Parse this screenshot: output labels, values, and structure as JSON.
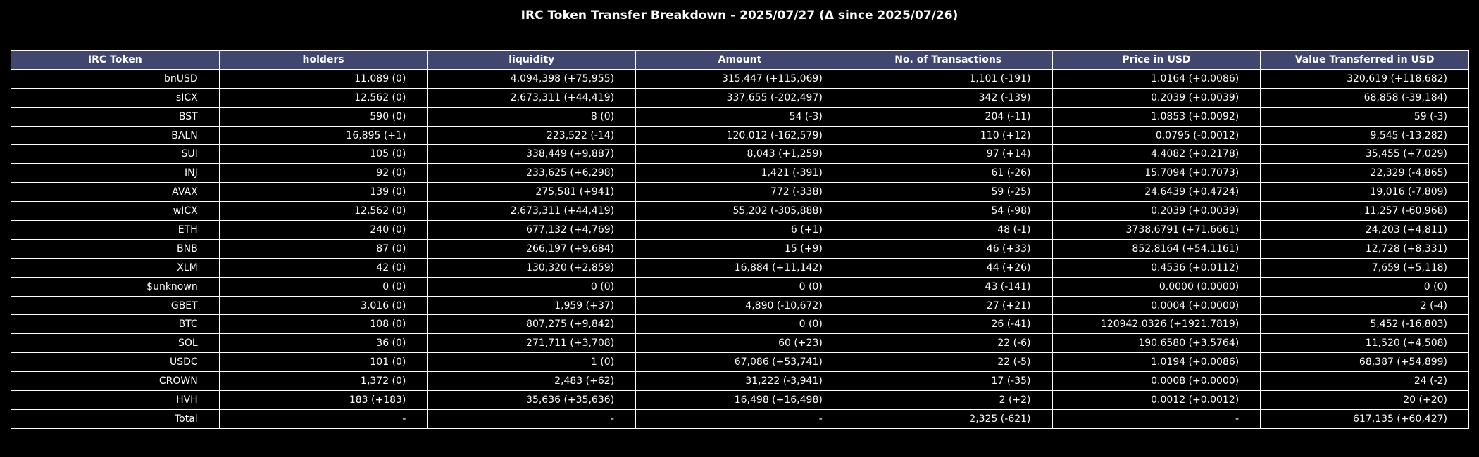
{
  "chart_data": {
    "type": "table",
    "title": "IRC Token Transfer Breakdown - 2025/07/27 (Δ since 2025/07/26)",
    "columns": [
      "IRC Token",
      "holders",
      "liquidity",
      "Amount",
      "No. of Transactions",
      "Price in USD",
      "Value Transferred in USD"
    ],
    "rows": [
      [
        "bnUSD",
        "11,089 (0)",
        "4,094,398 (+75,955)",
        "315,447 (+115,069)",
        "1,101 (-191)",
        "1.0164 (+0.0086)",
        "320,619 (+118,682)"
      ],
      [
        "sICX",
        "12,562 (0)",
        "2,673,311 (+44,419)",
        "337,655 (-202,497)",
        "342 (-139)",
        "0.2039 (+0.0039)",
        "68,858 (-39,184)"
      ],
      [
        "BST",
        "590 (0)",
        "8 (0)",
        "54 (-3)",
        "204 (-11)",
        "1.0853 (+0.0092)",
        "59 (-3)"
      ],
      [
        "BALN",
        "16,895 (+1)",
        "223,522 (-14)",
        "120,012 (-162,579)",
        "110 (+12)",
        "0.0795 (-0.0012)",
        "9,545 (-13,282)"
      ],
      [
        "SUI",
        "105 (0)",
        "338,449 (+9,887)",
        "8,043 (+1,259)",
        "97 (+14)",
        "4.4082 (+0.2178)",
        "35,455 (+7,029)"
      ],
      [
        "INJ",
        "92 (0)",
        "233,625 (+6,298)",
        "1,421 (-391)",
        "61 (-26)",
        "15.7094 (+0.7073)",
        "22,329 (-4,865)"
      ],
      [
        "AVAX",
        "139 (0)",
        "275,581 (+941)",
        "772 (-338)",
        "59 (-25)",
        "24.6439 (+0.4724)",
        "19,016 (-7,809)"
      ],
      [
        "wICX",
        "12,562 (0)",
        "2,673,311 (+44,419)",
        "55,202 (-305,888)",
        "54 (-98)",
        "0.2039 (+0.0039)",
        "11,257 (-60,968)"
      ],
      [
        "ETH",
        "240 (0)",
        "677,132 (+4,769)",
        "6 (+1)",
        "48 (-1)",
        "3738.6791 (+71.6661)",
        "24,203 (+4,811)"
      ],
      [
        "BNB",
        "87 (0)",
        "266,197 (+9,684)",
        "15 (+9)",
        "46 (+33)",
        "852.8164 (+54.1161)",
        "12,728 (+8,331)"
      ],
      [
        "XLM",
        "42 (0)",
        "130,320 (+2,859)",
        "16,884 (+11,142)",
        "44 (+26)",
        "0.4536 (+0.0112)",
        "7,659 (+5,118)"
      ],
      [
        "$unknown",
        "0 (0)",
        "0 (0)",
        "0 (0)",
        "43 (-141)",
        "0.0000 (0.0000)",
        "0 (0)"
      ],
      [
        "GBET",
        "3,016 (0)",
        "1,959 (+37)",
        "4,890 (-10,672)",
        "27 (+21)",
        "0.0004 (+0.0000)",
        "2 (-4)"
      ],
      [
        "BTC",
        "108 (0)",
        "807,275 (+9,842)",
        "0 (0)",
        "26 (-41)",
        "120942.0326 (+1921.7819)",
        "5,452 (-16,803)"
      ],
      [
        "SOL",
        "36 (0)",
        "271,711 (+3,708)",
        "60 (+23)",
        "22 (-6)",
        "190.6580 (+3.5764)",
        "11,520 (+4,508)"
      ],
      [
        "USDC",
        "101 (0)",
        "1 (0)",
        "67,086 (+53,741)",
        "22 (-5)",
        "1.0194 (+0.0086)",
        "68,387 (+54,899)"
      ],
      [
        "CROWN",
        "1,372 (0)",
        "2,483 (+62)",
        "31,222 (-3,941)",
        "17 (-35)",
        "0.0008 (+0.0000)",
        "24 (-2)"
      ],
      [
        "HVH",
        "183 (+183)",
        "35,636 (+35,636)",
        "16,498 (+16,498)",
        "2 (+2)",
        "0.0012 (+0.0012)",
        "20 (+20)"
      ],
      [
        "Total",
        "-",
        "-",
        "-",
        "2,325 (-621)",
        "-",
        "617,135 (+60,427)"
      ]
    ],
    "header_color": "#40466e",
    "cell_color": "#000000",
    "text_color": "#ffffff",
    "border_color": "#ffffff"
  }
}
